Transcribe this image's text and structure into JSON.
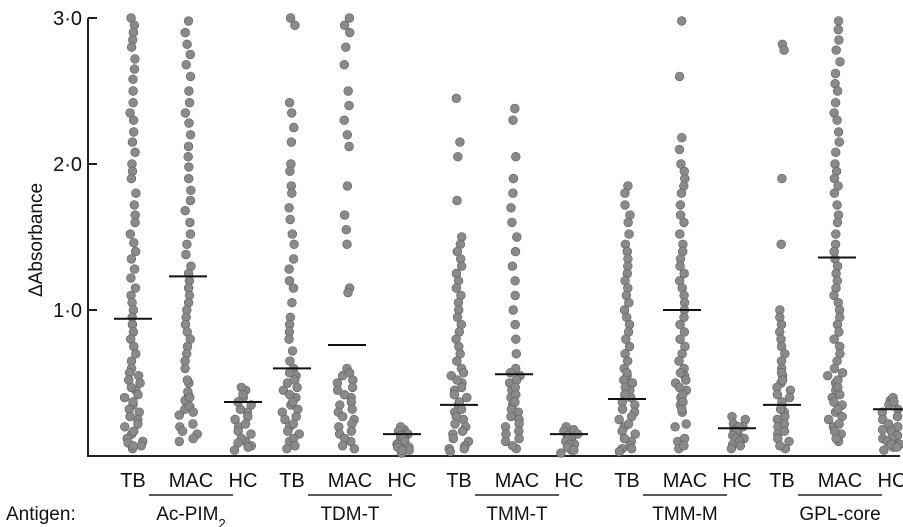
{
  "chart_data": {
    "type": "scatter",
    "title": "",
    "xlabel": "Antigen:",
    "ylabel": "ΔAbsorbance",
    "ylim": [
      0,
      3.0
    ],
    "yticks": [
      {
        "value": 1.0,
        "label": "1·0"
      },
      {
        "value": 2.0,
        "label": "2·0"
      },
      {
        "value": 3.0,
        "label": "3·0"
      }
    ],
    "group_labels": [
      "TB",
      "MAC",
      "HC"
    ],
    "antigens": [
      {
        "name": "Ac-PIM",
        "subscript": "2",
        "groups": [
          {
            "label": "TB",
            "mean": 0.94,
            "values": [
              3.0,
              2.95,
              2.9,
              2.85,
              2.8,
              2.72,
              2.65,
              2.58,
              2.5,
              2.42,
              2.35,
              2.3,
              2.22,
              2.15,
              2.08,
              2.0,
              1.95,
              1.9,
              1.8,
              1.72,
              1.65,
              1.6,
              1.52,
              1.46,
              1.4,
              1.35,
              1.28,
              1.22,
              1.15,
              1.1,
              1.05,
              1.0,
              0.95,
              0.9,
              0.85,
              0.8,
              0.75,
              0.7,
              0.65,
              0.6,
              0.55,
              0.5,
              0.45,
              0.4,
              0.35,
              0.3,
              0.25,
              0.2,
              0.15,
              0.1,
              0.07,
              0.05
            ]
          },
          {
            "label": "MAC",
            "mean": 1.23,
            "values": [
              2.98,
              2.9,
              2.82,
              2.75,
              2.68,
              2.6,
              2.5,
              2.42,
              2.35,
              2.28,
              2.2,
              2.12,
              2.05,
              1.98,
              1.9,
              1.82,
              1.75,
              1.68,
              1.6,
              1.52,
              1.45,
              1.38,
              1.3,
              1.25,
              1.2,
              1.15,
              1.1,
              1.05,
              1.0,
              0.95,
              0.9,
              0.85,
              0.8,
              0.75,
              0.7,
              0.65,
              0.6,
              0.5,
              0.42,
              0.38,
              0.32,
              0.28,
              0.2,
              0.15,
              0.1
            ]
          },
          {
            "label": "HC",
            "mean": 0.37,
            "values": [
              0.45,
              0.4,
              0.35,
              0.3,
              0.25,
              0.2,
              0.15,
              0.1,
              0.07,
              0.04
            ]
          }
        ]
      },
      {
        "name": "TDM-T",
        "subscript": "",
        "groups": [
          {
            "label": "TB",
            "mean": 0.6,
            "values": [
              3.0,
              2.95,
              2.42,
              2.35,
              2.25,
              2.15,
              2.0,
              1.95,
              1.85,
              1.8,
              1.7,
              1.62,
              1.52,
              1.45,
              1.35,
              1.28,
              1.2,
              1.15,
              1.05,
              0.95,
              0.9,
              0.85,
              0.8,
              0.72,
              0.65,
              0.6,
              0.55,
              0.5,
              0.45,
              0.4,
              0.35,
              0.3,
              0.25,
              0.2,
              0.15,
              0.1,
              0.05
            ]
          },
          {
            "label": "MAC",
            "mean": 0.76,
            "values": [
              3.0,
              2.95,
              2.9,
              2.8,
              2.68,
              2.5,
              2.4,
              2.3,
              2.2,
              2.12,
              1.85,
              1.65,
              1.55,
              1.45,
              1.15,
              1.12,
              0.6,
              0.55,
              0.5,
              0.45,
              0.4,
              0.35,
              0.3,
              0.25,
              0.2,
              0.15,
              0.1,
              0.05
            ]
          },
          {
            "label": "HC",
            "mean": 0.15,
            "values": [
              0.18,
              0.15,
              0.12,
              0.1,
              0.08,
              0.06,
              0.04,
              0.02
            ]
          }
        ]
      },
      {
        "name": "TMM-T",
        "subscript": "",
        "groups": [
          {
            "label": "TB",
            "mean": 0.35,
            "values": [
              2.45,
              2.15,
              2.05,
              1.75,
              1.5,
              1.45,
              1.4,
              1.35,
              1.3,
              1.25,
              1.2,
              1.15,
              1.1,
              1.05,
              1.0,
              0.95,
              0.9,
              0.85,
              0.8,
              0.75,
              0.7,
              0.65,
              0.6,
              0.55,
              0.5,
              0.45,
              0.4,
              0.35,
              0.3,
              0.25,
              0.2,
              0.15,
              0.1,
              0.05,
              0.03
            ]
          },
          {
            "label": "MAC",
            "mean": 0.56,
            "values": [
              2.38,
              2.3,
              2.05,
              1.9,
              1.8,
              1.7,
              1.6,
              1.5,
              1.4,
              1.3,
              1.2,
              1.1,
              1.0,
              0.9,
              0.8,
              0.7,
              0.6,
              0.55,
              0.5,
              0.45,
              0.4,
              0.35,
              0.3,
              0.25,
              0.2,
              0.15,
              0.1,
              0.05
            ]
          },
          {
            "label": "HC",
            "mean": 0.15,
            "values": [
              0.18,
              0.15,
              0.12,
              0.1,
              0.08,
              0.06,
              0.04,
              0.02
            ]
          }
        ]
      },
      {
        "name": "TMM-M",
        "subscript": "",
        "groups": [
          {
            "label": "TB",
            "mean": 0.39,
            "values": [
              1.85,
              1.8,
              1.72,
              1.65,
              1.6,
              1.52,
              1.45,
              1.4,
              1.35,
              1.3,
              1.25,
              1.2,
              1.15,
              1.1,
              1.05,
              1.0,
              0.95,
              0.9,
              0.85,
              0.8,
              0.75,
              0.7,
              0.65,
              0.6,
              0.55,
              0.5,
              0.45,
              0.4,
              0.35,
              0.3,
              0.25,
              0.2,
              0.15,
              0.1,
              0.05,
              0.03
            ]
          },
          {
            "label": "MAC",
            "mean": 1.0,
            "values": [
              2.98,
              2.6,
              2.18,
              2.1,
              2.0,
              1.95,
              1.9,
              1.85,
              1.8,
              1.72,
              1.65,
              1.6,
              1.52,
              1.45,
              1.4,
              1.35,
              1.3,
              1.25,
              1.2,
              1.15,
              1.1,
              1.05,
              1.0,
              0.95,
              0.9,
              0.85,
              0.8,
              0.75,
              0.7,
              0.65,
              0.6,
              0.55,
              0.5,
              0.45,
              0.4,
              0.35,
              0.3,
              0.2,
              0.1,
              0.05
            ]
          },
          {
            "label": "HC",
            "mean": 0.19,
            "values": [
              0.25,
              0.2,
              0.18,
              0.15,
              0.12,
              0.1,
              0.08,
              0.05
            ]
          }
        ]
      },
      {
        "name": "GPL-core",
        "subscript": "",
        "groups": [
          {
            "label": "TB",
            "mean": 0.35,
            "values": [
              2.82,
              2.78,
              1.9,
              1.45,
              1.0,
              0.95,
              0.9,
              0.85,
              0.8,
              0.75,
              0.7,
              0.65,
              0.6,
              0.55,
              0.5,
              0.45,
              0.4,
              0.35,
              0.3,
              0.25,
              0.2,
              0.15,
              0.1,
              0.05
            ]
          },
          {
            "label": "MAC",
            "mean": 1.36,
            "values": [
              2.98,
              2.92,
              2.85,
              2.78,
              2.7,
              2.62,
              2.55,
              2.5,
              2.42,
              2.35,
              2.3,
              2.22,
              2.15,
              2.08,
              2.0,
              1.95,
              1.9,
              1.85,
              1.8,
              1.72,
              1.65,
              1.6,
              1.52,
              1.45,
              1.4,
              1.35,
              1.3,
              1.25,
              1.2,
              1.15,
              1.1,
              1.05,
              1.0,
              0.95,
              0.9,
              0.85,
              0.8,
              0.75,
              0.7,
              0.65,
              0.6,
              0.55,
              0.5,
              0.45,
              0.4,
              0.35,
              0.3,
              0.25,
              0.2,
              0.15,
              0.1
            ]
          },
          {
            "label": "HC",
            "mean": 0.32,
            "values": [
              0.38,
              0.35,
              0.3,
              0.25,
              0.2,
              0.18,
              0.15,
              0.12,
              0.1,
              0.08,
              0.06,
              0.04
            ]
          }
        ]
      }
    ]
  }
}
